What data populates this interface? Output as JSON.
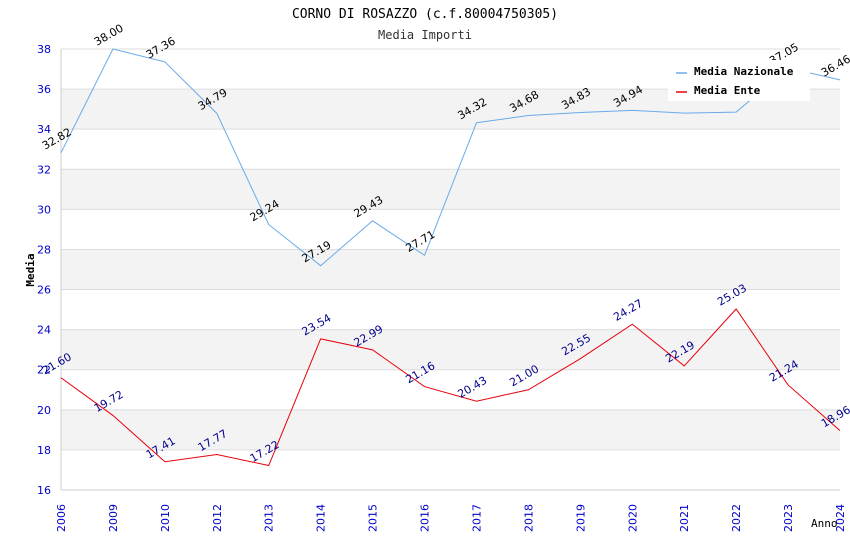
{
  "chart_data": {
    "type": "line",
    "title": "CORNO DI ROSAZZO (c.f.80004750305)",
    "subtitle": "Media Importi",
    "xlabel": "Anno",
    "ylabel": "Media",
    "ylim": [
      16,
      38
    ],
    "yticks": [
      16,
      18,
      20,
      22,
      24,
      26,
      28,
      30,
      32,
      34,
      36,
      38
    ],
    "categories": [
      "2006",
      "2009",
      "2010",
      "2012",
      "2013",
      "2014",
      "2015",
      "2016",
      "2017",
      "2018",
      "2019",
      "2020",
      "2021",
      "2022",
      "2023",
      "2024"
    ],
    "legend_position": "top-right",
    "grid": true,
    "series": [
      {
        "name": "Media Nazionale",
        "color": "#6aaae8",
        "label_color": "#000000",
        "values": [
          32.82,
          38.0,
          37.36,
          34.79,
          29.24,
          27.19,
          29.43,
          27.71,
          34.32,
          34.68,
          34.83,
          34.94,
          34.8,
          34.85,
          37.05,
          36.46
        ],
        "labels": [
          "32.82",
          "38.00",
          "37.36",
          "34.79",
          "29.24",
          "27.19",
          "29.43",
          "27.71",
          "34.32",
          "34.68",
          "34.83",
          "34.94",
          "",
          "",
          "37.05",
          "36.46"
        ]
      },
      {
        "name": "Media Ente",
        "color": "#e8000b",
        "label_color": "#00008b",
        "values": [
          21.6,
          19.72,
          17.41,
          17.77,
          17.22,
          23.54,
          22.99,
          21.16,
          20.43,
          21.0,
          22.55,
          24.27,
          22.19,
          25.03,
          21.24,
          18.96
        ],
        "labels": [
          "21.60",
          "19.72",
          "17.41",
          "17.77",
          "17.22",
          "23.54",
          "22.99",
          "21.16",
          "20.43",
          "21.00",
          "22.55",
          "24.27",
          "22.19",
          "25.03",
          "21.24",
          "18.96"
        ]
      }
    ]
  }
}
